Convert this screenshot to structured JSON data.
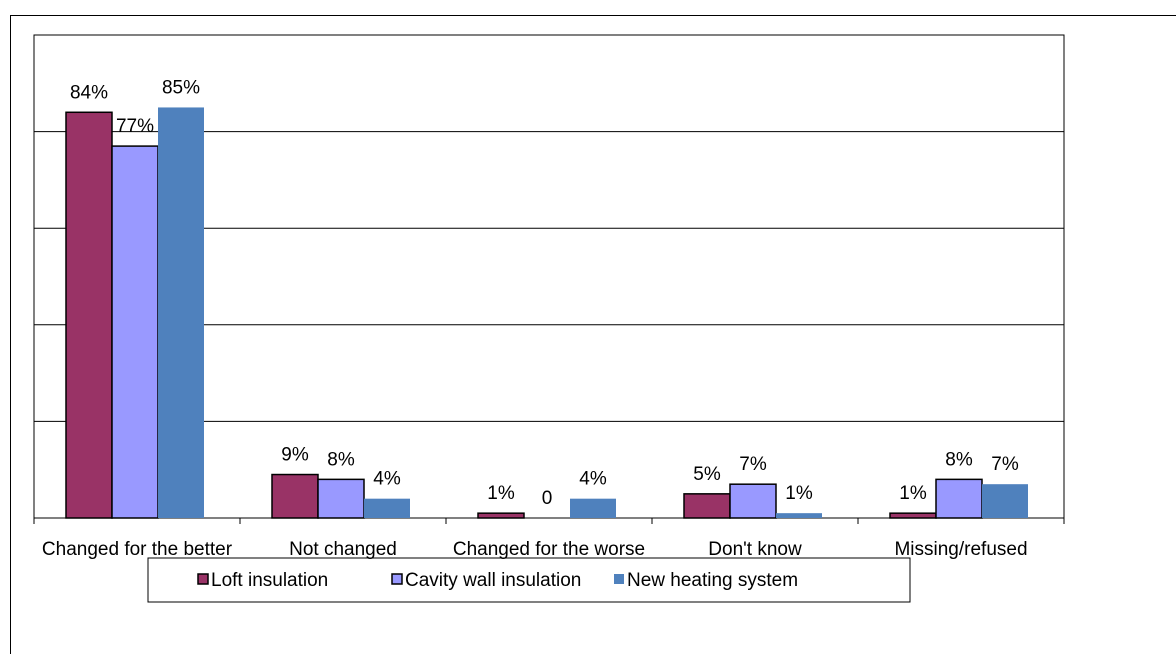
{
  "chart_data": {
    "type": "bar",
    "categories": [
      "Changed for the better",
      "Not changed",
      "Changed for the worse",
      "Don't know",
      "Missing/refused"
    ],
    "series": [
      {
        "name": "Loft insulation",
        "color": "#993366",
        "values": [
          84,
          9,
          1,
          5,
          1
        ],
        "value_labels": [
          "84%",
          "9%",
          "1%",
          "5%",
          "1%"
        ]
      },
      {
        "name": "Cavity wall insulation",
        "color": "#9999ff",
        "values": [
          77,
          8,
          0,
          7,
          8
        ],
        "value_labels": [
          "77%",
          "8%",
          "0",
          "7%",
          "8%"
        ]
      },
      {
        "name": "New heating system",
        "color": "#4f81bd",
        "values": [
          85,
          4,
          4,
          1,
          7
        ],
        "value_labels": [
          "85%",
          "4%",
          "4%",
          "1%",
          "7%"
        ]
      }
    ],
    "ylim": [
      0,
      100
    ],
    "yticks": [
      0,
      20,
      40,
      60,
      80,
      100
    ],
    "grid": true,
    "legend": "bottom"
  }
}
